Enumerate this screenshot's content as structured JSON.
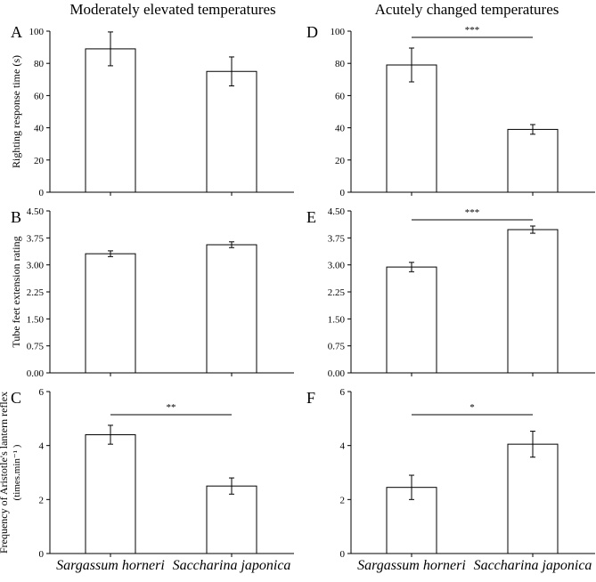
{
  "figure": {
    "left_title": "Moderately elevated temperatures",
    "right_title": "Acutely changed temperatures",
    "categories": [
      "Sargassum horneri",
      "Saccharina japonica"
    ]
  },
  "chart_data": [
    {
      "panel": "A",
      "type": "bar",
      "column": "left",
      "categories": [
        "Sargassum horneri",
        "Saccharina japonica"
      ],
      "values": [
        89,
        75
      ],
      "errors": [
        10.5,
        9
      ],
      "ylabel": "Righting response time (s)",
      "ylim": [
        0,
        100
      ],
      "yticks": [
        0,
        20,
        40,
        60,
        80,
        100
      ],
      "ytick_labels": [
        "0",
        "20",
        "40",
        "60",
        "80",
        "100"
      ],
      "significance": ""
    },
    {
      "panel": "B",
      "type": "bar",
      "column": "left",
      "categories": [
        "Sargassum horneri",
        "Saccharina japonica"
      ],
      "values": [
        3.31,
        3.56
      ],
      "errors": [
        0.08,
        0.08
      ],
      "ylabel": "Tube feet extension rating",
      "ylim": [
        0,
        4.5
      ],
      "yticks": [
        0,
        0.75,
        1.5,
        2.25,
        3,
        3.75,
        4.5
      ],
      "ytick_labels": [
        "0.00",
        "0.75",
        "1.50",
        "2.25",
        "3.00",
        "3.75",
        "4.50"
      ],
      "significance": ""
    },
    {
      "panel": "C",
      "type": "bar",
      "column": "left",
      "categories": [
        "Sargassum horneri",
        "Saccharina japonica"
      ],
      "values": [
        4.4,
        2.5
      ],
      "errors": [
        0.35,
        0.3
      ],
      "ylabel": "Frequency of Aristotle's lantern reflex",
      "ylabel_sub": "(times.min⁻¹ )",
      "ylim": [
        0,
        6
      ],
      "yticks": [
        0,
        2,
        4,
        6
      ],
      "ytick_labels": [
        "0",
        "2",
        "4",
        "6"
      ],
      "significance": "**"
    },
    {
      "panel": "D",
      "type": "bar",
      "column": "right",
      "categories": [
        "Sargassum horneri",
        "Saccharina japonica"
      ],
      "values": [
        79,
        39
      ],
      "errors": [
        10.5,
        3
      ],
      "ylim": [
        0,
        100
      ],
      "yticks": [
        0,
        20,
        40,
        60,
        80,
        100
      ],
      "ytick_labels": [
        "0",
        "20",
        "40",
        "60",
        "80",
        "100"
      ],
      "significance": "***"
    },
    {
      "panel": "E",
      "type": "bar",
      "column": "right",
      "categories": [
        "Sargassum horneri",
        "Saccharina japonica"
      ],
      "values": [
        2.94,
        3.98
      ],
      "errors": [
        0.13,
        0.1
      ],
      "ylim": [
        0,
        4.5
      ],
      "yticks": [
        0,
        0.75,
        1.5,
        2.25,
        3,
        3.75,
        4.5
      ],
      "ytick_labels": [
        "0.00",
        "0.75",
        "1.50",
        "2.25",
        "3.00",
        "3.75",
        "4.50"
      ],
      "significance": "***"
    },
    {
      "panel": "F",
      "type": "bar",
      "column": "right",
      "categories": [
        "Sargassum horneri",
        "Saccharina japonica"
      ],
      "values": [
        2.45,
        4.05
      ],
      "errors": [
        0.45,
        0.48
      ],
      "ylim": [
        0,
        6
      ],
      "yticks": [
        0,
        2,
        4,
        6
      ],
      "ytick_labels": [
        "0",
        "2",
        "4",
        "6"
      ],
      "significance": "*"
    }
  ]
}
